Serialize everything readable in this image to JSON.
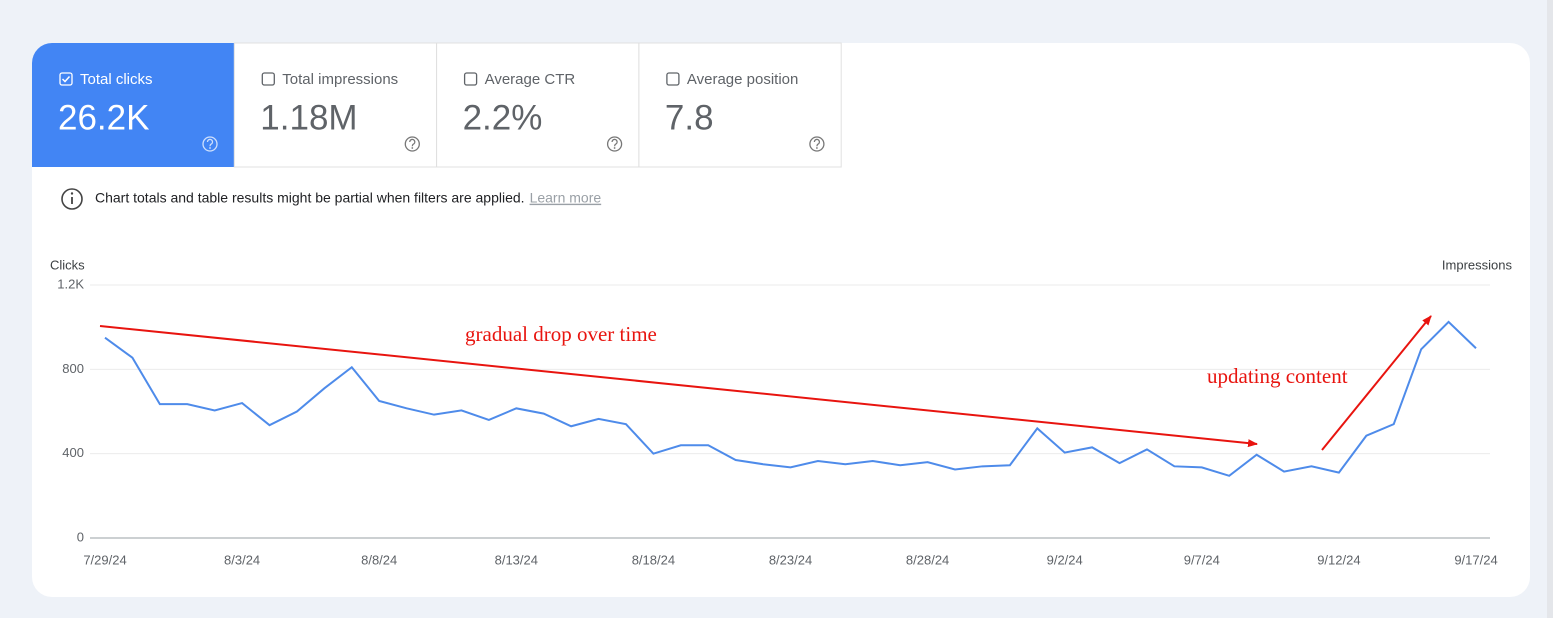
{
  "metrics": [
    {
      "label": "Total clicks",
      "value": "26.2K",
      "checked": true
    },
    {
      "label": "Total impressions",
      "value": "1.18M",
      "checked": false
    },
    {
      "label": "Average CTR",
      "value": "2.2%",
      "checked": false
    },
    {
      "label": "Average position",
      "value": "7.8",
      "checked": false
    }
  ],
  "notice": {
    "text": "Chart totals and table results might be partial when filters are applied.",
    "link": "Learn more"
  },
  "chart_data": {
    "type": "line",
    "y_label": "Clicks",
    "y2_label": "Impressions",
    "categories": [
      "7/29/24",
      null,
      null,
      null,
      null,
      "8/3/24",
      null,
      null,
      null,
      null,
      "8/8/24",
      null,
      null,
      null,
      null,
      "8/13/24",
      null,
      null,
      null,
      null,
      "8/18/24",
      null,
      null,
      null,
      null,
      "8/23/24",
      null,
      null,
      null,
      null,
      "8/28/24",
      null,
      null,
      null,
      null,
      "9/2/24",
      null,
      null,
      null,
      null,
      "9/7/24",
      null,
      null,
      null,
      null,
      "9/12/24",
      null,
      null,
      null,
      null,
      "9/17/24"
    ],
    "values": [
      950,
      855,
      635,
      635,
      605,
      640,
      535,
      600,
      710,
      810,
      650,
      615,
      585,
      605,
      560,
      615,
      590,
      530,
      565,
      540,
      400,
      440,
      440,
      370,
      350,
      335,
      365,
      350,
      365,
      345,
      360,
      325,
      340,
      345,
      520,
      405,
      430,
      355,
      420,
      340,
      335,
      295,
      395,
      315,
      340,
      310,
      485,
      540,
      895,
      1025,
      900
    ],
    "color": "#4e8bea",
    "ylim": [
      0,
      1200
    ],
    "yticks": [
      0,
      400,
      800,
      {
        "value": 1200,
        "label": "1.2K"
      }
    ],
    "grid": true,
    "annotations": [
      "gradual drop over time",
      "updating content"
    ]
  }
}
